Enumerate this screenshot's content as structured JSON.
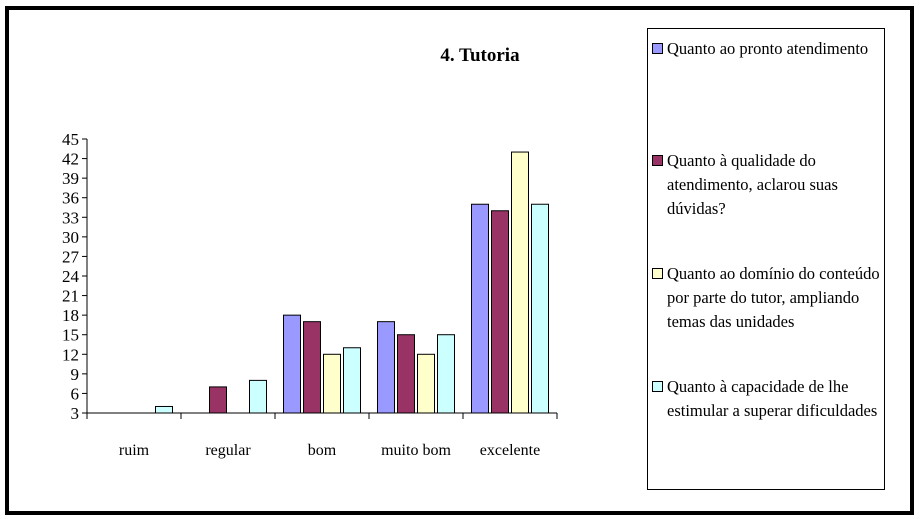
{
  "chart_data": {
    "type": "bar",
    "title": "4. Tutoria",
    "categories": [
      "ruim",
      "regular",
      "bom",
      "muito bom",
      "excelente"
    ],
    "series": [
      {
        "name": "Quanto ao pronto atendimento",
        "color": "#9999ff",
        "values": [
          null,
          null,
          18,
          17,
          35
        ]
      },
      {
        "name": "Quanto à qualidade do atendimento, aclarou suas dúvidas?",
        "color": "#993366",
        "values": [
          null,
          7,
          17,
          15,
          34
        ]
      },
      {
        "name": "Quanto ao domínio do conteúdo por parte do tutor, ampliando temas das unidades",
        "color": "#ffffcc",
        "values": [
          null,
          null,
          12,
          12,
          43
        ]
      },
      {
        "name": "Quanto à capacidade de lhe estimular a superar dificuldades",
        "color": "#ccffff",
        "values": [
          4,
          8,
          13,
          15,
          35
        ]
      }
    ],
    "yticks": [
      3,
      6,
      9,
      12,
      15,
      18,
      21,
      24,
      27,
      30,
      33,
      36,
      39,
      42,
      45
    ],
    "ylim": [
      3,
      45
    ],
    "legend_position": "right",
    "grid": false
  }
}
